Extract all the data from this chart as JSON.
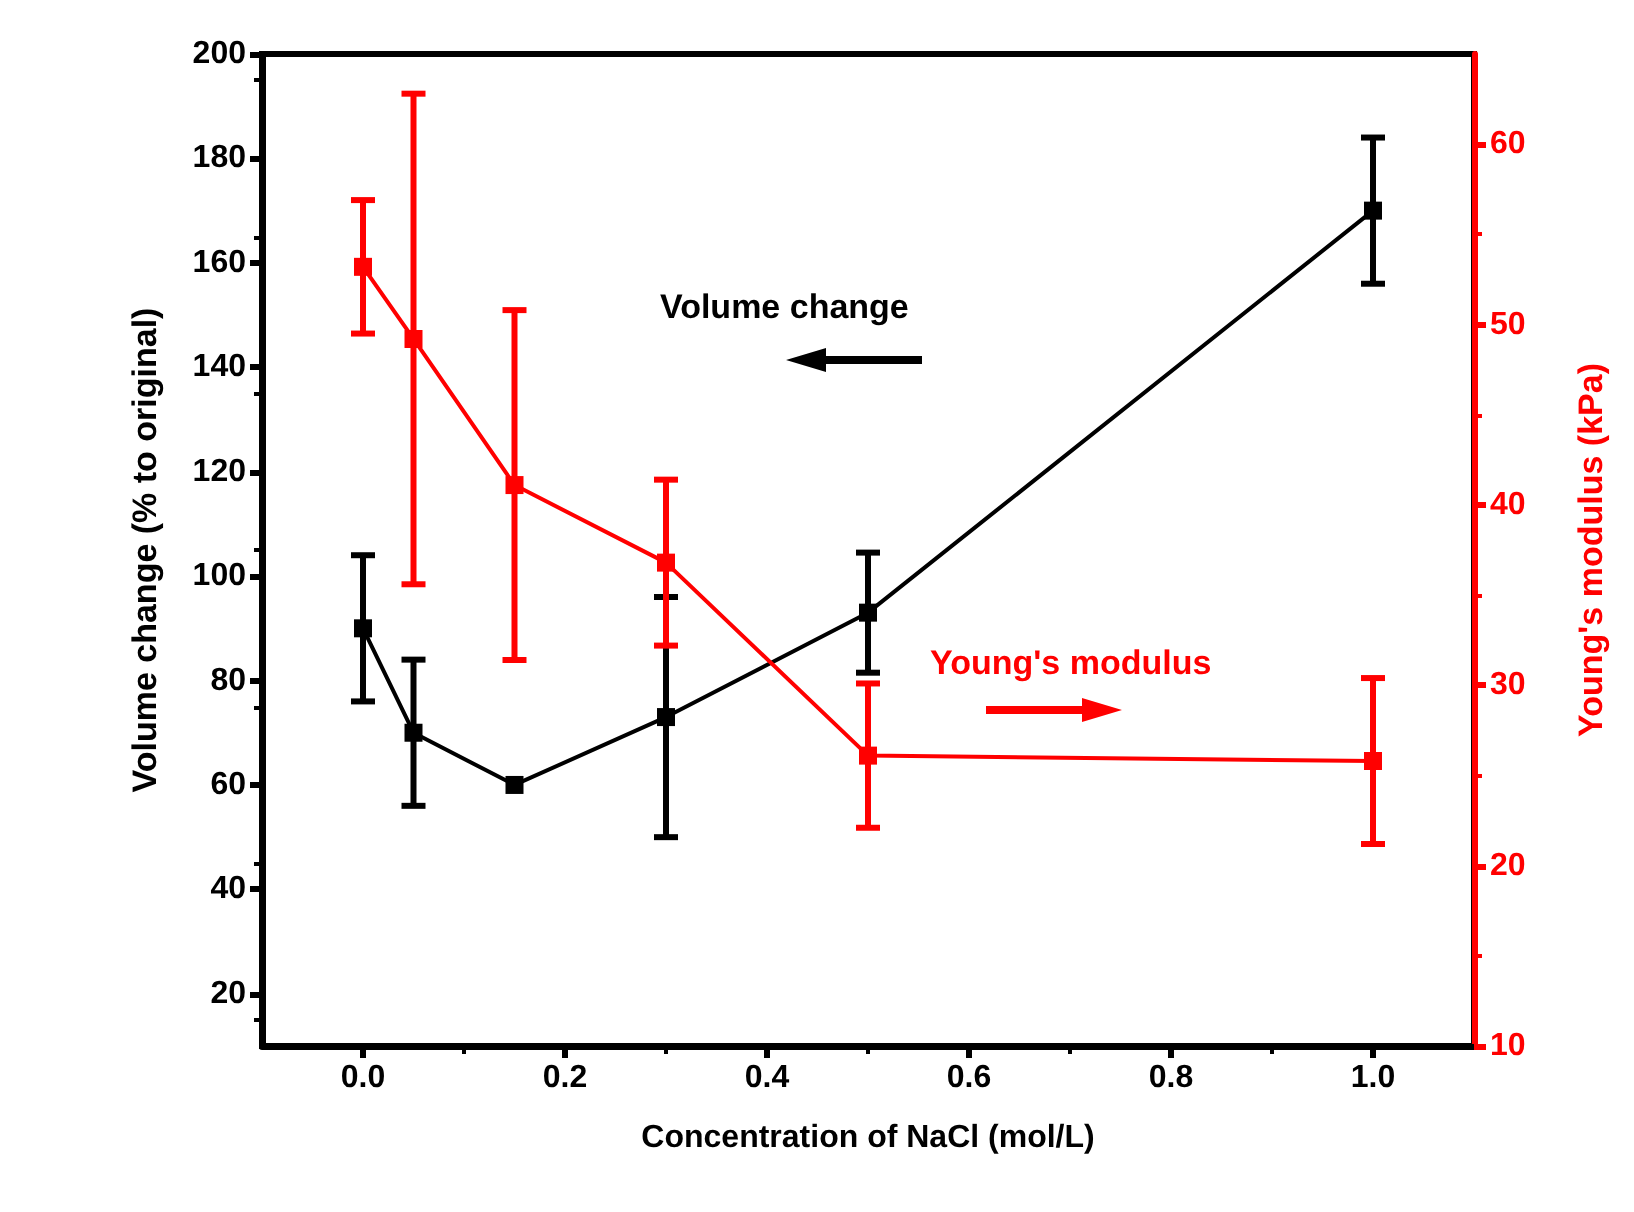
{
  "chart_data": {
    "type": "line",
    "xlabel": "Concentration of NaCl (mol/L)",
    "ylabel": "Volume change (% to original)",
    "y2label": "Young's modulus (kPa)",
    "x": [
      0,
      0.05,
      0.15,
      0.3,
      0.5,
      1.0
    ],
    "series": [
      {
        "name": "Volume change",
        "color": "#000000",
        "values": [
          90,
          70,
          60,
          73,
          93,
          170
        ],
        "errors": [
          14,
          14,
          null,
          23,
          11.5,
          14
        ]
      },
      {
        "name": "Young's modulus",
        "color": "#ff0000",
        "axis": "y2",
        "values": [
          53.2,
          49.2,
          41.1,
          36.8,
          26.1,
          25.8
        ],
        "errors": [
          3.7,
          13.6,
          9.7,
          4.6,
          4,
          4.6
        ]
      }
    ],
    "xlim": [
      -0.1,
      1.1
    ],
    "xticks": [
      {
        "value": 0,
        "label": "0.0"
      },
      0.2,
      0.4,
      0.6,
      0.8,
      {
        "value": 1,
        "label": "1.0"
      }
    ],
    "ylim": [
      10,
      200
    ],
    "yticks": [
      20,
      40,
      60,
      80,
      100,
      120,
      140,
      160,
      180,
      200
    ],
    "y2lim": [
      10,
      65
    ],
    "y2ticks": [
      10,
      20,
      30,
      40,
      50,
      60
    ],
    "marker": "square",
    "line_style": "solid",
    "grid": false,
    "legend": false
  }
}
